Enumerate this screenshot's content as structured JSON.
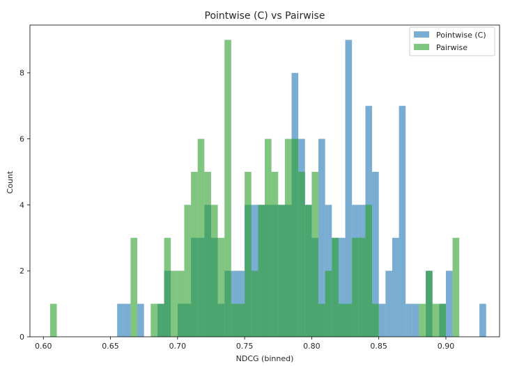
{
  "chart_data": {
    "type": "bar",
    "title": "Pointwise (C) vs Pairwise",
    "xlabel": "NDCG (binned)",
    "ylabel": "Count",
    "xlim": [
      0.59,
      0.94
    ],
    "ylim": [
      0,
      9.45
    ],
    "bin_width": 0.005,
    "xticks": [
      "0.60",
      "0.65",
      "0.70",
      "0.75",
      "0.80",
      "0.85",
      "0.90"
    ],
    "yticks": [
      "0",
      "2",
      "4",
      "6",
      "8"
    ],
    "legend_position": "top-right",
    "alpha": 0.6,
    "grid": false,
    "series": [
      {
        "name": "Pointwise (C)",
        "color": "#1f77b4",
        "bins": [
          [
            0.655,
            1
          ],
          [
            0.66,
            1
          ],
          [
            0.67,
            1
          ],
          [
            0.685,
            1
          ],
          [
            0.69,
            2
          ],
          [
            0.7,
            1
          ],
          [
            0.705,
            1
          ],
          [
            0.71,
            3
          ],
          [
            0.715,
            3
          ],
          [
            0.72,
            4
          ],
          [
            0.725,
            3
          ],
          [
            0.73,
            1
          ],
          [
            0.735,
            2
          ],
          [
            0.74,
            2
          ],
          [
            0.745,
            2
          ],
          [
            0.75,
            4
          ],
          [
            0.755,
            4
          ],
          [
            0.76,
            4
          ],
          [
            0.765,
            4
          ],
          [
            0.77,
            4
          ],
          [
            0.775,
            4
          ],
          [
            0.78,
            4
          ],
          [
            0.785,
            8
          ],
          [
            0.79,
            6
          ],
          [
            0.795,
            4
          ],
          [
            0.8,
            3
          ],
          [
            0.805,
            6
          ],
          [
            0.81,
            4
          ],
          [
            0.815,
            3
          ],
          [
            0.82,
            3
          ],
          [
            0.825,
            9
          ],
          [
            0.83,
            4
          ],
          [
            0.835,
            4
          ],
          [
            0.84,
            7
          ],
          [
            0.845,
            5
          ],
          [
            0.85,
            1
          ],
          [
            0.855,
            2
          ],
          [
            0.86,
            3
          ],
          [
            0.865,
            7
          ],
          [
            0.87,
            1
          ],
          [
            0.875,
            1
          ],
          [
            0.885,
            2
          ],
          [
            0.895,
            1
          ],
          [
            0.9,
            2
          ],
          [
            0.925,
            1
          ]
        ]
      },
      {
        "name": "Pairwise",
        "color": "#2ca02c",
        "bins": [
          [
            0.605,
            1
          ],
          [
            0.665,
            3
          ],
          [
            0.68,
            1
          ],
          [
            0.685,
            1
          ],
          [
            0.69,
            3
          ],
          [
            0.695,
            2
          ],
          [
            0.7,
            2
          ],
          [
            0.705,
            4
          ],
          [
            0.71,
            5
          ],
          [
            0.715,
            6
          ],
          [
            0.72,
            5
          ],
          [
            0.725,
            4
          ],
          [
            0.73,
            3
          ],
          [
            0.735,
            9
          ],
          [
            0.74,
            1
          ],
          [
            0.745,
            1
          ],
          [
            0.75,
            5
          ],
          [
            0.755,
            2
          ],
          [
            0.76,
            4
          ],
          [
            0.765,
            6
          ],
          [
            0.77,
            5
          ],
          [
            0.775,
            4
          ],
          [
            0.78,
            6
          ],
          [
            0.785,
            6
          ],
          [
            0.79,
            5
          ],
          [
            0.795,
            4
          ],
          [
            0.8,
            5
          ],
          [
            0.805,
            1
          ],
          [
            0.81,
            2
          ],
          [
            0.815,
            3
          ],
          [
            0.82,
            1
          ],
          [
            0.825,
            1
          ],
          [
            0.83,
            3
          ],
          [
            0.835,
            3
          ],
          [
            0.84,
            4
          ],
          [
            0.845,
            1
          ],
          [
            0.88,
            1
          ],
          [
            0.885,
            2
          ],
          [
            0.89,
            1
          ],
          [
            0.895,
            1
          ],
          [
            0.905,
            3
          ]
        ]
      }
    ]
  }
}
